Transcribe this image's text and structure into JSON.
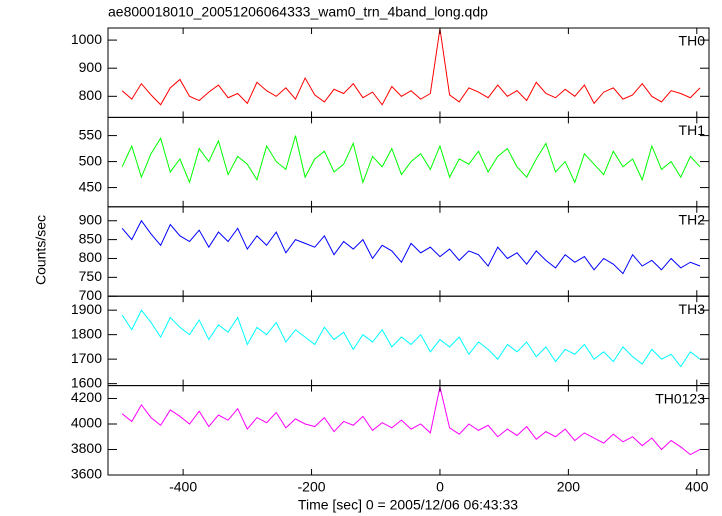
{
  "title": "ae800018010_20051206064333_wam0_trn_4band_long.qdp",
  "ylabel": "Counts/sec",
  "xlabel": "Time [sec] 0 = 2005/12/06 06:43:33",
  "chart_data": [
    {
      "type": "line",
      "name": "TH0",
      "color": "#ff0000",
      "x": [
        -495,
        -480,
        -465,
        -450,
        -435,
        -420,
        -405,
        -390,
        -375,
        -360,
        -345,
        -330,
        -315,
        -300,
        -285,
        -270,
        -255,
        -240,
        -225,
        -210,
        -195,
        -180,
        -165,
        -150,
        -135,
        -120,
        -105,
        -90,
        -75,
        -60,
        -45,
        -30,
        -15,
        0,
        15,
        30,
        45,
        60,
        75,
        90,
        105,
        120,
        135,
        150,
        165,
        180,
        195,
        210,
        225,
        240,
        255,
        270,
        285,
        300,
        315,
        330,
        345,
        360,
        375,
        390,
        405
      ],
      "values": [
        820,
        790,
        845,
        805,
        770,
        830,
        860,
        800,
        785,
        815,
        840,
        795,
        810,
        775,
        850,
        820,
        800,
        830,
        790,
        865,
        805,
        780,
        825,
        810,
        845,
        795,
        815,
        770,
        835,
        800,
        820,
        790,
        810,
        1040,
        805,
        780,
        830,
        815,
        795,
        840,
        800,
        820,
        785,
        850,
        810,
        795,
        825,
        800,
        840,
        775,
        815,
        830,
        790,
        805,
        845,
        800,
        780,
        820,
        810,
        795,
        830
      ],
      "xlim": [
        -517,
        419
      ],
      "xticks": [
        -400,
        -200,
        0,
        200,
        400
      ],
      "ylim": [
        725,
        1043
      ],
      "yticks": [
        800,
        900,
        1000
      ]
    },
    {
      "type": "line",
      "name": "TH1",
      "color": "#00ff00",
      "x": [
        -495,
        -480,
        -465,
        -450,
        -435,
        -420,
        -405,
        -390,
        -375,
        -360,
        -345,
        -330,
        -315,
        -300,
        -285,
        -270,
        -255,
        -240,
        -225,
        -210,
        -195,
        -180,
        -165,
        -150,
        -135,
        -120,
        -105,
        -90,
        -75,
        -60,
        -45,
        -30,
        -15,
        0,
        15,
        30,
        45,
        60,
        75,
        90,
        105,
        120,
        135,
        150,
        165,
        180,
        195,
        210,
        225,
        240,
        255,
        270,
        285,
        300,
        315,
        330,
        345,
        360,
        375,
        390,
        405
      ],
      "values": [
        490,
        530,
        470,
        515,
        545,
        480,
        505,
        460,
        525,
        500,
        540,
        475,
        510,
        495,
        465,
        530,
        500,
        485,
        550,
        470,
        505,
        520,
        480,
        495,
        535,
        460,
        510,
        490,
        525,
        475,
        500,
        515,
        485,
        530,
        470,
        505,
        495,
        520,
        480,
        510,
        525,
        490,
        470,
        505,
        535,
        480,
        500,
        460,
        515,
        495,
        475,
        520,
        490,
        505,
        465,
        530,
        485,
        500,
        470,
        510,
        490
      ],
      "xlim": [
        -517,
        419
      ],
      "xticks": [
        -400,
        -200,
        0,
        200,
        400
      ],
      "ylim": [
        413,
        585
      ],
      "yticks": [
        450,
        500,
        550
      ]
    },
    {
      "type": "line",
      "name": "TH2",
      "color": "#0000ff",
      "x": [
        -495,
        -480,
        -465,
        -450,
        -435,
        -420,
        -405,
        -390,
        -375,
        -360,
        -345,
        -330,
        -315,
        -300,
        -285,
        -270,
        -255,
        -240,
        -225,
        -210,
        -195,
        -180,
        -165,
        -150,
        -135,
        -120,
        -105,
        -90,
        -75,
        -60,
        -45,
        -30,
        -15,
        0,
        15,
        30,
        45,
        60,
        75,
        90,
        105,
        120,
        135,
        150,
        165,
        180,
        195,
        210,
        225,
        240,
        255,
        270,
        285,
        300,
        315,
        330,
        345,
        360,
        375,
        390,
        405
      ],
      "values": [
        880,
        850,
        900,
        865,
        835,
        890,
        860,
        845,
        875,
        830,
        870,
        845,
        880,
        825,
        860,
        835,
        870,
        815,
        850,
        840,
        830,
        860,
        810,
        845,
        825,
        850,
        800,
        835,
        820,
        790,
        840,
        815,
        830,
        805,
        825,
        795,
        820,
        810,
        780,
        830,
        800,
        815,
        785,
        820,
        795,
        775,
        810,
        790,
        805,
        770,
        800,
        785,
        760,
        810,
        780,
        795,
        770,
        800,
        775,
        790,
        780
      ],
      "xlim": [
        -517,
        419
      ],
      "xticks": [
        -400,
        -200,
        0,
        200,
        400
      ],
      "ylim": [
        700,
        937
      ],
      "yticks": [
        700,
        750,
        800,
        850,
        900
      ]
    },
    {
      "type": "line",
      "name": "TH3",
      "color": "#00ffff",
      "x": [
        -495,
        -480,
        -465,
        -450,
        -435,
        -420,
        -405,
        -390,
        -375,
        -360,
        -345,
        -330,
        -315,
        -300,
        -285,
        -270,
        -255,
        -240,
        -225,
        -210,
        -195,
        -180,
        -165,
        -150,
        -135,
        -120,
        -105,
        -90,
        -75,
        -60,
        -45,
        -30,
        -15,
        0,
        15,
        30,
        45,
        60,
        75,
        90,
        105,
        120,
        135,
        150,
        165,
        180,
        195,
        210,
        225,
        240,
        255,
        270,
        285,
        300,
        315,
        330,
        345,
        360,
        375,
        390,
        405
      ],
      "values": [
        1880,
        1820,
        1900,
        1850,
        1790,
        1870,
        1830,
        1800,
        1860,
        1780,
        1840,
        1810,
        1870,
        1760,
        1830,
        1800,
        1850,
        1770,
        1820,
        1790,
        1760,
        1830,
        1780,
        1810,
        1740,
        1800,
        1770,
        1820,
        1750,
        1790,
        1760,
        1800,
        1730,
        1780,
        1750,
        1790,
        1720,
        1770,
        1740,
        1700,
        1760,
        1730,
        1770,
        1710,
        1750,
        1690,
        1740,
        1720,
        1760,
        1700,
        1730,
        1690,
        1750,
        1710,
        1680,
        1740,
        1700,
        1720,
        1670,
        1730,
        1700
      ],
      "xlim": [
        -517,
        419
      ],
      "xticks": [
        -400,
        -200,
        0,
        200,
        400
      ],
      "ylim": [
        1592,
        1957
      ],
      "yticks": [
        1600,
        1700,
        1800,
        1900
      ]
    },
    {
      "type": "line",
      "name": "TH0123",
      "color": "#ff00ff",
      "x": [
        -495,
        -480,
        -465,
        -450,
        -435,
        -420,
        -405,
        -390,
        -375,
        -360,
        -345,
        -330,
        -315,
        -300,
        -285,
        -270,
        -255,
        -240,
        -225,
        -210,
        -195,
        -180,
        -165,
        -150,
        -135,
        -120,
        -105,
        -90,
        -75,
        -60,
        -45,
        -30,
        -15,
        0,
        15,
        30,
        45,
        60,
        75,
        90,
        105,
        120,
        135,
        150,
        165,
        180,
        195,
        210,
        225,
        240,
        255,
        270,
        285,
        300,
        315,
        330,
        345,
        360,
        375,
        390,
        405
      ],
      "values": [
        4080,
        4020,
        4150,
        4050,
        3990,
        4110,
        4060,
        4000,
        4100,
        3980,
        4070,
        4030,
        4120,
        3960,
        4050,
        4010,
        4090,
        3970,
        4040,
        4000,
        3980,
        4050,
        3940,
        4020,
        3990,
        4060,
        3950,
        4010,
        3970,
        4030,
        3960,
        4000,
        3930,
        4290,
        3970,
        3920,
        4000,
        3950,
        3990,
        3900,
        3960,
        3910,
        3980,
        3880,
        3940,
        3900,
        3960,
        3870,
        3930,
        3890,
        3850,
        3920,
        3860,
        3900,
        3830,
        3890,
        3800,
        3870,
        3820,
        3760,
        3800
      ],
      "xlim": [
        -517,
        419
      ],
      "xticks": [
        -400,
        -200,
        0,
        200,
        400
      ],
      "ylim": [
        3600,
        4301
      ],
      "yticks": [
        3600,
        3800,
        4000,
        4200
      ]
    }
  ]
}
